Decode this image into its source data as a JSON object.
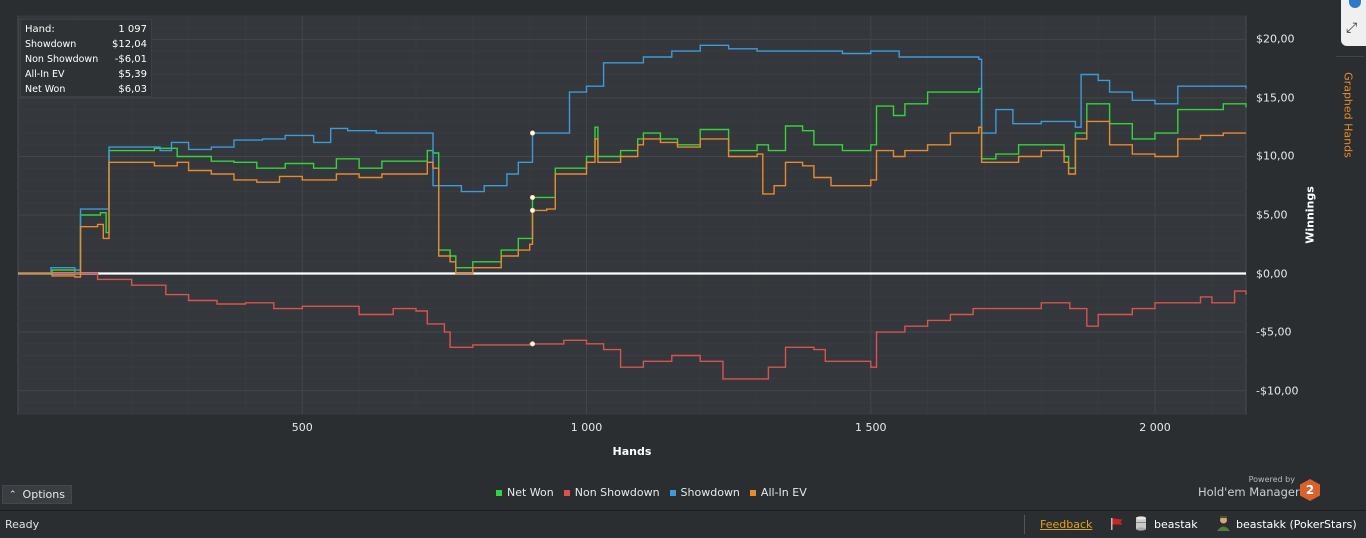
{
  "tooltip": {
    "rows": [
      {
        "label": "Hand:",
        "value": "1 097"
      },
      {
        "label": "Showdown",
        "value": "$12,04"
      },
      {
        "label": "Non Showdown",
        "value": "-$6,01"
      },
      {
        "label": "All-In EV",
        "value": "$5,39"
      },
      {
        "label": "Net Won",
        "value": "$6,03"
      }
    ]
  },
  "chart_data": {
    "type": "line",
    "xlabel": "Hands",
    "ylabel": "Winnings",
    "xlim": [
      0,
      2160
    ],
    "ylim": [
      -12,
      22
    ],
    "x_ticks": [
      500,
      1000,
      1500,
      2000
    ],
    "x_tick_labels": [
      "500",
      "1 000",
      "1 500",
      "2 000"
    ],
    "y_ticks": [
      20,
      15,
      10,
      5,
      0,
      -5,
      -10
    ],
    "y_tick_labels": [
      "$20,00",
      "$15,00",
      "$10,00",
      "$5,00",
      "$0,00",
      "-$5,00",
      "-$10,00"
    ],
    "grid": true,
    "legend_position": "bottom-center",
    "highlight_x": 900,
    "series": [
      {
        "name": "Net Won",
        "color": "#35d43a",
        "points": [
          [
            0,
            0
          ],
          [
            55,
            0
          ],
          [
            60,
            0.3
          ],
          [
            100,
            0
          ],
          [
            110,
            5
          ],
          [
            145,
            5.2
          ],
          [
            155,
            3.5
          ],
          [
            160,
            10.5
          ],
          [
            210,
            10.5
          ],
          [
            240,
            10.7
          ],
          [
            280,
            10
          ],
          [
            300,
            10
          ],
          [
            340,
            9.6
          ],
          [
            380,
            9.5
          ],
          [
            420,
            9
          ],
          [
            470,
            9.4
          ],
          [
            520,
            9
          ],
          [
            560,
            9.8
          ],
          [
            600,
            9
          ],
          [
            640,
            9.6
          ],
          [
            690,
            9.6
          ],
          [
            720,
            10.5
          ],
          [
            730,
            10.3
          ],
          [
            740,
            2
          ],
          [
            760,
            1.5
          ],
          [
            770,
            0.5
          ],
          [
            800,
            1
          ],
          [
            830,
            1
          ],
          [
            850,
            2
          ],
          [
            880,
            3
          ],
          [
            900,
            3
          ],
          [
            905,
            6.5
          ],
          [
            930,
            6.5
          ],
          [
            945,
            9
          ],
          [
            1000,
            10
          ],
          [
            1015,
            12.5
          ],
          [
            1020,
            10
          ],
          [
            1060,
            10.5
          ],
          [
            1090,
            11.5
          ],
          [
            1100,
            12
          ],
          [
            1130,
            11.5
          ],
          [
            1160,
            11
          ],
          [
            1200,
            12.3
          ],
          [
            1250,
            10.5
          ],
          [
            1300,
            11
          ],
          [
            1320,
            10.5
          ],
          [
            1350,
            12.6
          ],
          [
            1380,
            12.2
          ],
          [
            1400,
            11
          ],
          [
            1450,
            10.5
          ],
          [
            1500,
            11
          ],
          [
            1510,
            14.3
          ],
          [
            1540,
            13.5
          ],
          [
            1560,
            14.5
          ],
          [
            1600,
            15.5
          ],
          [
            1640,
            15.5
          ],
          [
            1690,
            15.8
          ],
          [
            1695,
            9.8
          ],
          [
            1720,
            10.2
          ],
          [
            1760,
            11
          ],
          [
            1800,
            11
          ],
          [
            1840,
            10
          ],
          [
            1848,
            9
          ],
          [
            1860,
            12
          ],
          [
            1880,
            14.5
          ],
          [
            1920,
            12.8
          ],
          [
            1960,
            11.5
          ],
          [
            2000,
            12
          ],
          [
            2040,
            14
          ],
          [
            2080,
            14
          ],
          [
            2120,
            14.5
          ],
          [
            2160,
            14.2
          ]
        ]
      },
      {
        "name": "Non Showdown",
        "color": "#d9534f",
        "points": [
          [
            0,
            0
          ],
          [
            100,
            0
          ],
          [
            140,
            -0.5
          ],
          [
            200,
            -1
          ],
          [
            260,
            -1.8
          ],
          [
            300,
            -2.3
          ],
          [
            350,
            -2.6
          ],
          [
            400,
            -2.5
          ],
          [
            450,
            -3
          ],
          [
            500,
            -2.8
          ],
          [
            550,
            -2.8
          ],
          [
            600,
            -3.5
          ],
          [
            660,
            -3
          ],
          [
            700,
            -3.2
          ],
          [
            720,
            -4.3
          ],
          [
            750,
            -5
          ],
          [
            760,
            -6.3
          ],
          [
            800,
            -6.1
          ],
          [
            850,
            -6.1
          ],
          [
            900,
            -6.01
          ],
          [
            960,
            -5.7
          ],
          [
            1000,
            -6
          ],
          [
            1030,
            -6.5
          ],
          [
            1060,
            -8
          ],
          [
            1100,
            -7.5
          ],
          [
            1150,
            -7
          ],
          [
            1200,
            -7.5
          ],
          [
            1240,
            -9
          ],
          [
            1280,
            -9
          ],
          [
            1320,
            -8
          ],
          [
            1350,
            -6.3
          ],
          [
            1400,
            -6.5
          ],
          [
            1420,
            -7.5
          ],
          [
            1500,
            -8
          ],
          [
            1510,
            -5
          ],
          [
            1560,
            -4.5
          ],
          [
            1600,
            -4
          ],
          [
            1640,
            -3.5
          ],
          [
            1680,
            -3
          ],
          [
            1750,
            -3
          ],
          [
            1800,
            -2.5
          ],
          [
            1850,
            -3
          ],
          [
            1880,
            -4.5
          ],
          [
            1900,
            -3.5
          ],
          [
            1960,
            -3
          ],
          [
            2000,
            -2.5
          ],
          [
            2080,
            -2
          ],
          [
            2100,
            -2.5
          ],
          [
            2140,
            -1.5
          ],
          [
            2160,
            -1.8
          ]
        ]
      },
      {
        "name": "Showdown",
        "color": "#3d9bd8",
        "points": [
          [
            0,
            0
          ],
          [
            55,
            0
          ],
          [
            58,
            0.5
          ],
          [
            100,
            0.3
          ],
          [
            110,
            5.5
          ],
          [
            145,
            5.5
          ],
          [
            160,
            10.8
          ],
          [
            200,
            10.8
          ],
          [
            250,
            10.5
          ],
          [
            270,
            11.2
          ],
          [
            300,
            10.6
          ],
          [
            340,
            10.8
          ],
          [
            380,
            11.4
          ],
          [
            430,
            11.5
          ],
          [
            470,
            11.8
          ],
          [
            520,
            11.2
          ],
          [
            550,
            12.4
          ],
          [
            580,
            12.2
          ],
          [
            630,
            12
          ],
          [
            700,
            12
          ],
          [
            720,
            12
          ],
          [
            730,
            7.5
          ],
          [
            780,
            7
          ],
          [
            820,
            7.5
          ],
          [
            860,
            8.5
          ],
          [
            880,
            9.5
          ],
          [
            905,
            12
          ],
          [
            950,
            12
          ],
          [
            970,
            15.5
          ],
          [
            1000,
            16
          ],
          [
            1030,
            18
          ],
          [
            1100,
            18.5
          ],
          [
            1150,
            19
          ],
          [
            1200,
            19.5
          ],
          [
            1250,
            19.2
          ],
          [
            1300,
            19
          ],
          [
            1350,
            19
          ],
          [
            1400,
            19
          ],
          [
            1450,
            18.8
          ],
          [
            1500,
            19
          ],
          [
            1550,
            18.5
          ],
          [
            1600,
            18.5
          ],
          [
            1660,
            18.5
          ],
          [
            1690,
            18.3
          ],
          [
            1695,
            12
          ],
          [
            1720,
            14
          ],
          [
            1750,
            12.8
          ],
          [
            1800,
            13
          ],
          [
            1850,
            13
          ],
          [
            1860,
            12.5
          ],
          [
            1870,
            17
          ],
          [
            1900,
            16.5
          ],
          [
            1920,
            15.5
          ],
          [
            1960,
            14.8
          ],
          [
            2000,
            14.5
          ],
          [
            2040,
            16
          ],
          [
            2160,
            15.8
          ]
        ]
      },
      {
        "name": "All-In EV",
        "color": "#e88a30",
        "points": [
          [
            0,
            0
          ],
          [
            55,
            0
          ],
          [
            60,
            -0.2
          ],
          [
            100,
            -0.3
          ],
          [
            110,
            4
          ],
          [
            140,
            4.2
          ],
          [
            150,
            3
          ],
          [
            160,
            9.5
          ],
          [
            200,
            9.5
          ],
          [
            240,
            9.2
          ],
          [
            280,
            9.5
          ],
          [
            300,
            8.8
          ],
          [
            340,
            8.5
          ],
          [
            380,
            8
          ],
          [
            420,
            7.8
          ],
          [
            460,
            8.3
          ],
          [
            500,
            8
          ],
          [
            560,
            8.5
          ],
          [
            600,
            8.2
          ],
          [
            640,
            8.5
          ],
          [
            680,
            8.5
          ],
          [
            720,
            9.5
          ],
          [
            730,
            9
          ],
          [
            740,
            1.5
          ],
          [
            760,
            1
          ],
          [
            770,
            0
          ],
          [
            800,
            0.5
          ],
          [
            830,
            0.5
          ],
          [
            850,
            1.5
          ],
          [
            880,
            2
          ],
          [
            900,
            2.5
          ],
          [
            905,
            5.39
          ],
          [
            930,
            5.5
          ],
          [
            945,
            8.5
          ],
          [
            1000,
            9.5
          ],
          [
            1015,
            11.5
          ],
          [
            1020,
            9.5
          ],
          [
            1060,
            10
          ],
          [
            1090,
            11
          ],
          [
            1100,
            11.5
          ],
          [
            1130,
            11.2
          ],
          [
            1160,
            10.8
          ],
          [
            1200,
            11.5
          ],
          [
            1250,
            10
          ],
          [
            1300,
            10.2
          ],
          [
            1310,
            6.8
          ],
          [
            1330,
            7.5
          ],
          [
            1350,
            9.5
          ],
          [
            1380,
            9.2
          ],
          [
            1400,
            8.2
          ],
          [
            1430,
            7.5
          ],
          [
            1450,
            7.5
          ],
          [
            1500,
            8
          ],
          [
            1510,
            10.5
          ],
          [
            1540,
            10
          ],
          [
            1560,
            10.5
          ],
          [
            1600,
            11
          ],
          [
            1640,
            12
          ],
          [
            1690,
            12.5
          ],
          [
            1695,
            9.5
          ],
          [
            1720,
            9.5
          ],
          [
            1760,
            10
          ],
          [
            1800,
            10.5
          ],
          [
            1840,
            9.5
          ],
          [
            1848,
            8.5
          ],
          [
            1860,
            11.5
          ],
          [
            1880,
            13
          ],
          [
            1920,
            11
          ],
          [
            1960,
            10.2
          ],
          [
            2000,
            10
          ],
          [
            2040,
            11.5
          ],
          [
            2080,
            11.8
          ],
          [
            2120,
            12
          ],
          [
            2160,
            12
          ]
        ]
      }
    ]
  },
  "options": {
    "label": "Options"
  },
  "powered_by": {
    "small": "Powered by",
    "name": "Hold'em Manager",
    "logo_text": "2"
  },
  "side_tab": {
    "label": "Graphed Hands"
  },
  "status": {
    "text": "Ready",
    "feedback": "Feedback",
    "database": "beastak",
    "player": "beastakk (PokerStars)"
  },
  "colors": {
    "background": "#2b2e31",
    "plot_background": "#34373b",
    "grid": "#42464a",
    "zero_line": "#ffffff"
  }
}
